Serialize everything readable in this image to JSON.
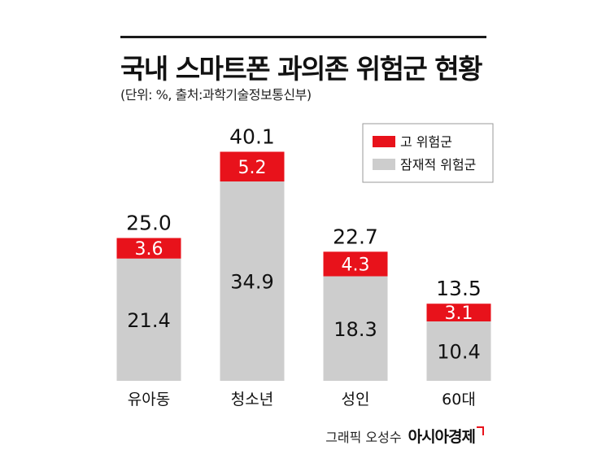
{
  "header": {
    "title": "국내 스마트폰 과의존 위험군 현황",
    "subtitle": "(단위: %, 출처:과학기술정보통신부)"
  },
  "footer": {
    "credit": "그래픽 오성수",
    "logo": "아시아경제"
  },
  "colors": {
    "high_risk": "#e8121b",
    "potential_risk": "#cdcdcd",
    "text": "#111111"
  },
  "chart_data": {
    "type": "bar",
    "stacked": true,
    "categories": [
      "유아동",
      "청소년",
      "성인",
      "60대"
    ],
    "series": [
      {
        "name": "잠재적 위험군",
        "values": [
          21.4,
          34.9,
          18.3,
          10.4
        ]
      },
      {
        "name": "고 위험군",
        "values": [
          3.6,
          5.2,
          4.3,
          3.1
        ]
      }
    ],
    "totals": [
      25.0,
      40.1,
      22.7,
      13.5
    ],
    "value_labels": {
      "잠재적 위험군": [
        "21.4",
        "34.9",
        "18.3",
        "10.4"
      ],
      "고 위험군": [
        "3.6",
        "5.2",
        "4.3",
        "3.1"
      ],
      "totals": [
        "25.0",
        "40.1",
        "22.7",
        "13.5"
      ]
    },
    "legend": [
      "고 위험군",
      "잠재적 위험군"
    ],
    "legend_position": "top-right",
    "ylim": [
      0,
      41
    ],
    "grid": false
  }
}
